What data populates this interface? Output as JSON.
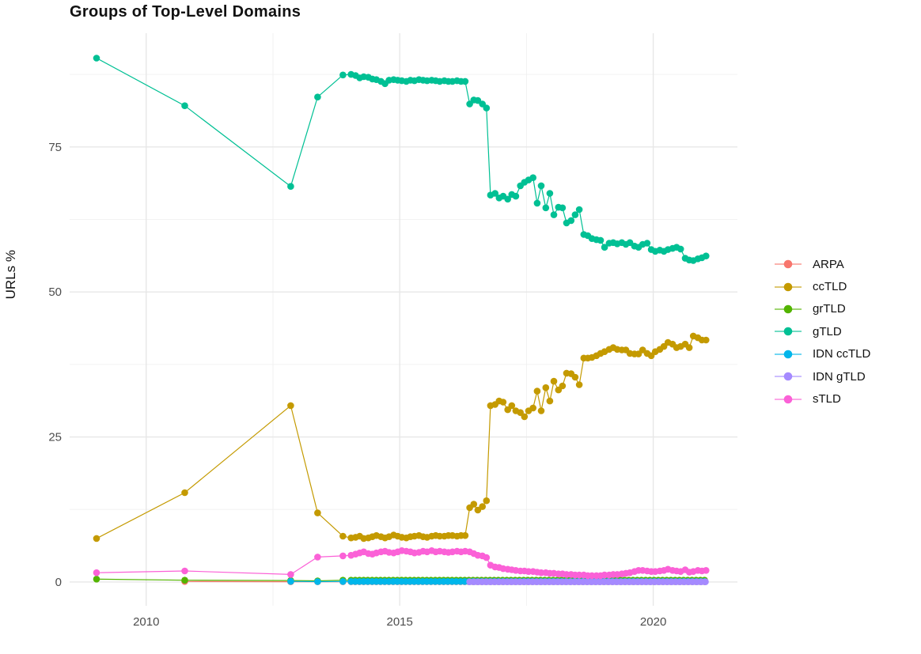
{
  "chart_data": {
    "type": "line",
    "title": "Groups of Top-Level Domains",
    "ylabel": "URLs %",
    "xlabel": "",
    "x_ticks": [
      2010,
      2015,
      2020
    ],
    "x_minor_ticks": [
      2012.5,
      2017.5
    ],
    "y_ticks": [
      0,
      25,
      50,
      75
    ],
    "y_minor_ticks": [
      12.5,
      37.5,
      62.5,
      87.5
    ],
    "x_domain": [
      2008.49,
      2021.66
    ],
    "y_domain": [
      -4.1,
      94.6
    ],
    "grid": true,
    "legend_position": "right",
    "background": "#FFFFFF",
    "major_grid_color": "#E7E7E7",
    "minor_grid_color": "#F0F0F0",
    "series": [
      {
        "name": "ARPA",
        "color": "#F8766D",
        "points": [
          [
            2010.76,
            0.08
          ],
          [
            2012.85,
            0.05
          ],
          [
            2013.38,
            0.05
          ],
          [
            2013.88,
            0.05
          ]
        ],
        "flat_runs": [
          {
            "from": 2014.04,
            "to": 2021.04,
            "step": 0.083,
            "value": 0.05
          }
        ]
      },
      {
        "name": "ccTLD",
        "color": "#C49A00",
        "points": [
          [
            2009.02,
            7.5
          ],
          [
            2010.76,
            15.4
          ],
          [
            2012.85,
            30.4
          ],
          [
            2013.38,
            11.9
          ],
          [
            2013.88,
            7.9
          ],
          [
            2014.04,
            7.6
          ],
          [
            2014.13,
            7.7
          ],
          [
            2014.21,
            7.9
          ],
          [
            2014.29,
            7.5
          ],
          [
            2014.38,
            7.6
          ],
          [
            2014.46,
            7.8
          ],
          [
            2014.54,
            8.0
          ],
          [
            2014.63,
            7.8
          ],
          [
            2014.71,
            7.6
          ],
          [
            2014.79,
            7.8
          ],
          [
            2014.88,
            8.1
          ],
          [
            2014.96,
            7.9
          ],
          [
            2015.04,
            7.7
          ],
          [
            2015.13,
            7.6
          ],
          [
            2015.21,
            7.8
          ],
          [
            2015.29,
            7.9
          ],
          [
            2015.38,
            8.0
          ],
          [
            2015.46,
            7.8
          ],
          [
            2015.54,
            7.7
          ],
          [
            2015.63,
            7.9
          ],
          [
            2015.71,
            8.0
          ],
          [
            2015.79,
            7.9
          ],
          [
            2015.88,
            7.9
          ],
          [
            2015.96,
            8.0
          ],
          [
            2016.04,
            8.0
          ],
          [
            2016.13,
            7.9
          ],
          [
            2016.21,
            8.0
          ],
          [
            2016.29,
            8.0
          ],
          [
            2016.38,
            12.8
          ],
          [
            2016.46,
            13.4
          ],
          [
            2016.54,
            12.4
          ],
          [
            2016.63,
            13.0
          ],
          [
            2016.71,
            14.0
          ],
          [
            2016.79,
            30.4
          ],
          [
            2016.88,
            30.6
          ],
          [
            2016.96,
            31.2
          ],
          [
            2017.04,
            31.0
          ],
          [
            2017.13,
            29.7
          ],
          [
            2017.21,
            30.4
          ],
          [
            2017.29,
            29.5
          ],
          [
            2017.38,
            29.2
          ],
          [
            2017.46,
            28.5
          ],
          [
            2017.54,
            29.5
          ],
          [
            2017.63,
            30.0
          ],
          [
            2017.71,
            32.9
          ],
          [
            2017.79,
            29.5
          ],
          [
            2017.88,
            33.5
          ],
          [
            2017.96,
            31.2
          ],
          [
            2018.04,
            34.6
          ],
          [
            2018.13,
            33.1
          ],
          [
            2018.21,
            33.8
          ],
          [
            2018.29,
            36.0
          ],
          [
            2018.38,
            35.9
          ],
          [
            2018.46,
            35.3
          ],
          [
            2018.54,
            34.0
          ],
          [
            2018.63,
            38.6
          ],
          [
            2018.71,
            38.6
          ],
          [
            2018.79,
            38.7
          ],
          [
            2018.88,
            39.0
          ],
          [
            2018.96,
            39.4
          ],
          [
            2019.04,
            39.7
          ],
          [
            2019.13,
            40.1
          ],
          [
            2019.21,
            40.4
          ],
          [
            2019.29,
            40.1
          ],
          [
            2019.38,
            40.0
          ],
          [
            2019.46,
            40.0
          ],
          [
            2019.54,
            39.4
          ],
          [
            2019.63,
            39.3
          ],
          [
            2019.71,
            39.3
          ],
          [
            2019.79,
            40.0
          ],
          [
            2019.88,
            39.4
          ],
          [
            2019.96,
            39.0
          ],
          [
            2020.04,
            39.7
          ],
          [
            2020.13,
            40.1
          ],
          [
            2020.21,
            40.6
          ],
          [
            2020.29,
            41.3
          ],
          [
            2020.38,
            41.0
          ],
          [
            2020.46,
            40.4
          ],
          [
            2020.54,
            40.6
          ],
          [
            2020.63,
            41.0
          ],
          [
            2020.71,
            40.4
          ],
          [
            2020.79,
            42.4
          ],
          [
            2020.88,
            42.1
          ],
          [
            2020.96,
            41.7
          ],
          [
            2021.04,
            41.7
          ]
        ]
      },
      {
        "name": "grTLD",
        "color": "#53B400",
        "points": [
          [
            2009.02,
            0.5
          ],
          [
            2010.76,
            0.3
          ],
          [
            2012.85,
            0.25
          ],
          [
            2013.38,
            0.2
          ],
          [
            2013.88,
            0.3
          ]
        ],
        "flat_runs": [
          {
            "from": 2014.04,
            "to": 2021.04,
            "step": 0.083,
            "value": 0.3
          }
        ]
      },
      {
        "name": "gTLD",
        "color": "#00C094",
        "points": [
          [
            2009.02,
            90.3
          ],
          [
            2010.76,
            82.1
          ],
          [
            2012.85,
            68.2
          ],
          [
            2013.38,
            83.6
          ],
          [
            2013.88,
            87.4
          ],
          [
            2014.04,
            87.5
          ],
          [
            2014.13,
            87.3
          ],
          [
            2014.21,
            86.9
          ],
          [
            2014.29,
            87.1
          ],
          [
            2014.38,
            87.0
          ],
          [
            2014.46,
            86.7
          ],
          [
            2014.54,
            86.6
          ],
          [
            2014.63,
            86.3
          ],
          [
            2014.71,
            85.9
          ],
          [
            2014.79,
            86.5
          ],
          [
            2014.88,
            86.6
          ],
          [
            2014.96,
            86.5
          ],
          [
            2015.04,
            86.4
          ],
          [
            2015.13,
            86.3
          ],
          [
            2015.21,
            86.5
          ],
          [
            2015.29,
            86.4
          ],
          [
            2015.38,
            86.6
          ],
          [
            2015.46,
            86.5
          ],
          [
            2015.54,
            86.4
          ],
          [
            2015.63,
            86.5
          ],
          [
            2015.71,
            86.4
          ],
          [
            2015.79,
            86.3
          ],
          [
            2015.88,
            86.4
          ],
          [
            2015.96,
            86.3
          ],
          [
            2016.04,
            86.3
          ],
          [
            2016.13,
            86.4
          ],
          [
            2016.21,
            86.3
          ],
          [
            2016.29,
            86.3
          ],
          [
            2016.38,
            82.4
          ],
          [
            2016.46,
            83.1
          ],
          [
            2016.54,
            83.0
          ],
          [
            2016.63,
            82.4
          ],
          [
            2016.71,
            81.7
          ],
          [
            2016.79,
            66.7
          ],
          [
            2016.88,
            67.0
          ],
          [
            2016.96,
            66.2
          ],
          [
            2017.04,
            66.5
          ],
          [
            2017.13,
            66.0
          ],
          [
            2017.21,
            66.8
          ],
          [
            2017.29,
            66.5
          ],
          [
            2017.38,
            68.3
          ],
          [
            2017.46,
            68.9
          ],
          [
            2017.54,
            69.3
          ],
          [
            2017.63,
            69.7
          ],
          [
            2017.71,
            65.3
          ],
          [
            2017.79,
            68.3
          ],
          [
            2017.88,
            64.5
          ],
          [
            2017.96,
            67.0
          ],
          [
            2018.04,
            63.3
          ],
          [
            2018.13,
            64.6
          ],
          [
            2018.21,
            64.5
          ],
          [
            2018.29,
            61.9
          ],
          [
            2018.38,
            62.3
          ],
          [
            2018.46,
            63.3
          ],
          [
            2018.54,
            64.2
          ],
          [
            2018.63,
            59.9
          ],
          [
            2018.71,
            59.7
          ],
          [
            2018.79,
            59.2
          ],
          [
            2018.88,
            59.0
          ],
          [
            2018.96,
            58.9
          ],
          [
            2019.04,
            57.7
          ],
          [
            2019.13,
            58.4
          ],
          [
            2019.21,
            58.5
          ],
          [
            2019.29,
            58.3
          ],
          [
            2019.38,
            58.5
          ],
          [
            2019.46,
            58.2
          ],
          [
            2019.54,
            58.5
          ],
          [
            2019.63,
            57.9
          ],
          [
            2019.71,
            57.7
          ],
          [
            2019.79,
            58.2
          ],
          [
            2019.88,
            58.4
          ],
          [
            2019.96,
            57.3
          ],
          [
            2020.04,
            57.0
          ],
          [
            2020.13,
            57.2
          ],
          [
            2020.21,
            57.0
          ],
          [
            2020.29,
            57.3
          ],
          [
            2020.38,
            57.5
          ],
          [
            2020.46,
            57.7
          ],
          [
            2020.54,
            57.4
          ],
          [
            2020.63,
            55.8
          ],
          [
            2020.71,
            55.5
          ],
          [
            2020.79,
            55.4
          ],
          [
            2020.88,
            55.7
          ],
          [
            2020.96,
            55.9
          ],
          [
            2021.04,
            56.2
          ]
        ]
      },
      {
        "name": "IDN ccTLD",
        "color": "#00B6EB",
        "points": [
          [
            2012.85,
            0.1
          ],
          [
            2013.38,
            0.06
          ],
          [
            2013.88,
            0.08
          ]
        ],
        "flat_runs": [
          {
            "from": 2014.04,
            "to": 2021.04,
            "step": 0.083,
            "value": 0.08
          }
        ]
      },
      {
        "name": "IDN gTLD",
        "color": "#A58AFF",
        "points": [],
        "flat_runs": [
          {
            "from": 2016.38,
            "to": 2021.04,
            "step": 0.083,
            "value": 0.03
          }
        ]
      },
      {
        "name": "sTLD",
        "color": "#FB61D7",
        "points": [
          [
            2009.02,
            1.6
          ],
          [
            2010.76,
            1.9
          ],
          [
            2012.85,
            1.3
          ],
          [
            2013.38,
            4.3
          ],
          [
            2013.88,
            4.5
          ],
          [
            2014.04,
            4.6
          ],
          [
            2014.13,
            4.8
          ],
          [
            2014.21,
            5.0
          ],
          [
            2014.29,
            5.2
          ],
          [
            2014.38,
            4.9
          ],
          [
            2014.46,
            4.8
          ],
          [
            2014.54,
            5.0
          ],
          [
            2014.63,
            5.2
          ],
          [
            2014.71,
            5.3
          ],
          [
            2014.79,
            5.1
          ],
          [
            2014.88,
            5.0
          ],
          [
            2014.96,
            5.2
          ],
          [
            2015.04,
            5.4
          ],
          [
            2015.13,
            5.3
          ],
          [
            2015.21,
            5.2
          ],
          [
            2015.29,
            5.0
          ],
          [
            2015.38,
            5.1
          ],
          [
            2015.46,
            5.3
          ],
          [
            2015.54,
            5.2
          ],
          [
            2015.63,
            5.4
          ],
          [
            2015.71,
            5.2
          ],
          [
            2015.79,
            5.3
          ],
          [
            2015.88,
            5.2
          ],
          [
            2015.96,
            5.1
          ],
          [
            2016.04,
            5.2
          ],
          [
            2016.13,
            5.3
          ],
          [
            2016.21,
            5.2
          ],
          [
            2016.29,
            5.3
          ],
          [
            2016.38,
            5.2
          ],
          [
            2016.46,
            4.9
          ],
          [
            2016.54,
            4.6
          ],
          [
            2016.63,
            4.5
          ],
          [
            2016.71,
            4.2
          ],
          [
            2016.79,
            2.9
          ],
          [
            2016.88,
            2.6
          ],
          [
            2016.96,
            2.5
          ],
          [
            2017.04,
            2.3
          ],
          [
            2017.13,
            2.2
          ],
          [
            2017.21,
            2.1
          ],
          [
            2017.29,
            2.0
          ],
          [
            2017.38,
            1.9
          ],
          [
            2017.46,
            1.9
          ],
          [
            2017.54,
            1.8
          ],
          [
            2017.63,
            1.8
          ],
          [
            2017.71,
            1.7
          ],
          [
            2017.79,
            1.6
          ],
          [
            2017.88,
            1.6
          ],
          [
            2017.96,
            1.5
          ],
          [
            2018.04,
            1.5
          ],
          [
            2018.13,
            1.4
          ],
          [
            2018.21,
            1.4
          ],
          [
            2018.29,
            1.3
          ],
          [
            2018.38,
            1.3
          ],
          [
            2018.46,
            1.2
          ],
          [
            2018.54,
            1.2
          ],
          [
            2018.63,
            1.2
          ],
          [
            2018.71,
            1.1
          ],
          [
            2018.79,
            1.1
          ],
          [
            2018.88,
            1.1
          ],
          [
            2018.96,
            1.1
          ],
          [
            2019.04,
            1.2
          ],
          [
            2019.13,
            1.2
          ],
          [
            2019.21,
            1.3
          ],
          [
            2019.29,
            1.3
          ],
          [
            2019.38,
            1.4
          ],
          [
            2019.46,
            1.5
          ],
          [
            2019.54,
            1.6
          ],
          [
            2019.63,
            1.8
          ],
          [
            2019.71,
            2.0
          ],
          [
            2019.79,
            2.0
          ],
          [
            2019.88,
            1.9
          ],
          [
            2019.96,
            1.8
          ],
          [
            2020.04,
            1.8
          ],
          [
            2020.13,
            1.9
          ],
          [
            2020.21,
            2.0
          ],
          [
            2020.29,
            2.2
          ],
          [
            2020.38,
            2.0
          ],
          [
            2020.46,
            1.9
          ],
          [
            2020.54,
            1.8
          ],
          [
            2020.63,
            2.1
          ],
          [
            2020.71,
            1.7
          ],
          [
            2020.79,
            1.8
          ],
          [
            2020.88,
            2.0
          ],
          [
            2020.96,
            1.9
          ],
          [
            2021.04,
            2.0
          ]
        ]
      }
    ]
  }
}
